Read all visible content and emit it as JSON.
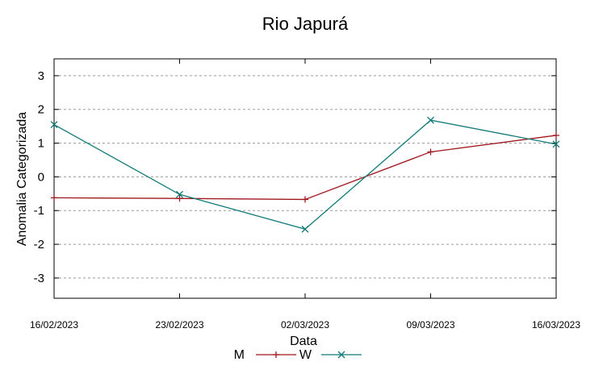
{
  "chart_data": {
    "type": "line",
    "title": "Rio Japurá",
    "xlabel": "Data",
    "ylabel": "Anomalia Categorizada",
    "categories": [
      "16/02/2023",
      "23/02/2023",
      "02/03/2023",
      "09/03/2023",
      "16/03/2023"
    ],
    "yticks": [
      "3",
      "2",
      "1",
      "0",
      "-1",
      "-2",
      "-3"
    ],
    "ylim": [
      -3.6,
      3.5
    ],
    "grid": true,
    "legend_position": "bottom",
    "series": [
      {
        "name": "M",
        "color": "#a0181e",
        "marker": "plus",
        "values": [
          -0.62,
          -0.64,
          -0.67,
          0.74,
          1.23
        ]
      },
      {
        "name": "W",
        "color": "#117a7a",
        "marker": "cross",
        "values": [
          1.55,
          -0.52,
          -1.55,
          1.68,
          0.97
        ]
      }
    ]
  }
}
